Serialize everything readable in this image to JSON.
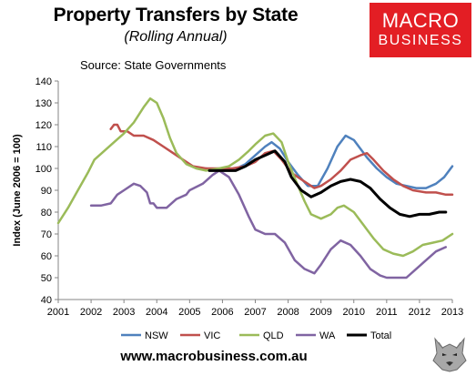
{
  "header": {
    "title": "Property Transfers by State",
    "subtitle": "(Rolling Annual)",
    "source": "Source: State Governments"
  },
  "logo": {
    "line1": "MACRO",
    "line2": "BUSINESS",
    "color": "#e31e24"
  },
  "footer": {
    "website": "www.macrobusiness.com.au"
  },
  "chart_data": {
    "type": "line",
    "title": "Property Transfers by State",
    "subtitle": "(Rolling Annual)",
    "ylabel": "Index (June 2006 = 100)",
    "xlabel": "",
    "xlim": [
      2001,
      2013
    ],
    "ylim": [
      40,
      140
    ],
    "x_ticks": [
      "2001",
      "2002",
      "2003",
      "2004",
      "2005",
      "2006",
      "2007",
      "2008",
      "2009",
      "2010",
      "2011",
      "2012",
      "2013"
    ],
    "y_ticks": [
      "40",
      "50",
      "60",
      "70",
      "80",
      "90",
      "100",
      "110",
      "120",
      "130",
      "140"
    ],
    "grid": false,
    "legend_position": "bottom",
    "series": [
      {
        "name": "NSW",
        "color": "#4f81bd",
        "width": 2.5,
        "points": [
          [
            2005.5,
            100
          ],
          [
            2006.0,
            99
          ],
          [
            2006.3,
            99
          ],
          [
            2006.7,
            102
          ],
          [
            2007.0,
            106
          ],
          [
            2007.3,
            110
          ],
          [
            2007.5,
            112
          ],
          [
            2007.75,
            109
          ],
          [
            2008.0,
            103
          ],
          [
            2008.3,
            97
          ],
          [
            2008.6,
            92
          ],
          [
            2008.9,
            92
          ],
          [
            2009.2,
            100
          ],
          [
            2009.5,
            110
          ],
          [
            2009.75,
            115
          ],
          [
            2010.0,
            113
          ],
          [
            2010.2,
            109
          ],
          [
            2010.4,
            105
          ],
          [
            2010.7,
            100
          ],
          [
            2011.0,
            96
          ],
          [
            2011.3,
            93
          ],
          [
            2011.6,
            92
          ],
          [
            2011.9,
            91
          ],
          [
            2012.2,
            91
          ],
          [
            2012.5,
            93
          ],
          [
            2012.75,
            96
          ],
          [
            2013.0,
            101
          ]
        ]
      },
      {
        "name": "VIC",
        "color": "#c0504d",
        "width": 2.5,
        "points": [
          [
            2002.6,
            118
          ],
          [
            2002.7,
            120
          ],
          [
            2002.8,
            120
          ],
          [
            2002.9,
            117
          ],
          [
            2003.1,
            117
          ],
          [
            2003.3,
            115
          ],
          [
            2003.6,
            115
          ],
          [
            2003.9,
            113
          ],
          [
            2004.2,
            110
          ],
          [
            2004.5,
            107
          ],
          [
            2004.8,
            104
          ],
          [
            2005.1,
            101
          ],
          [
            2005.5,
            100
          ],
          [
            2006.0,
            100
          ],
          [
            2006.3,
            100
          ],
          [
            2006.7,
            101
          ],
          [
            2007.0,
            103
          ],
          [
            2007.3,
            107
          ],
          [
            2007.55,
            108
          ],
          [
            2007.8,
            104
          ],
          [
            2008.1,
            98
          ],
          [
            2008.5,
            94
          ],
          [
            2008.8,
            91
          ],
          [
            2009.0,
            92
          ],
          [
            2009.3,
            95
          ],
          [
            2009.6,
            99
          ],
          [
            2009.9,
            104
          ],
          [
            2010.2,
            106
          ],
          [
            2010.4,
            107
          ],
          [
            2010.6,
            104
          ],
          [
            2010.9,
            99
          ],
          [
            2011.2,
            95
          ],
          [
            2011.5,
            92
          ],
          [
            2011.8,
            90
          ],
          [
            2012.2,
            89
          ],
          [
            2012.5,
            89
          ],
          [
            2012.8,
            88
          ],
          [
            2013.0,
            88
          ]
        ]
      },
      {
        "name": "QLD",
        "color": "#9bbb59",
        "width": 2.5,
        "points": [
          [
            2001.0,
            75
          ],
          [
            2001.3,
            82
          ],
          [
            2001.6,
            90
          ],
          [
            2001.9,
            98
          ],
          [
            2002.1,
            104
          ],
          [
            2002.4,
            108
          ],
          [
            2002.7,
            112
          ],
          [
            2003.0,
            116
          ],
          [
            2003.3,
            121
          ],
          [
            2003.6,
            128
          ],
          [
            2003.8,
            132
          ],
          [
            2004.0,
            130
          ],
          [
            2004.2,
            123
          ],
          [
            2004.4,
            114
          ],
          [
            2004.6,
            107
          ],
          [
            2004.9,
            102
          ],
          [
            2005.2,
            100
          ],
          [
            2005.5,
            99
          ],
          [
            2005.9,
            100
          ],
          [
            2006.2,
            101
          ],
          [
            2006.5,
            104
          ],
          [
            2006.8,
            108
          ],
          [
            2007.0,
            111
          ],
          [
            2007.3,
            115
          ],
          [
            2007.55,
            116
          ],
          [
            2007.8,
            112
          ],
          [
            2008.0,
            103
          ],
          [
            2008.3,
            92
          ],
          [
            2008.5,
            85
          ],
          [
            2008.7,
            79
          ],
          [
            2009.0,
            77
          ],
          [
            2009.3,
            79
          ],
          [
            2009.5,
            82
          ],
          [
            2009.7,
            83
          ],
          [
            2010.0,
            80
          ],
          [
            2010.3,
            74
          ],
          [
            2010.6,
            68
          ],
          [
            2010.9,
            63
          ],
          [
            2011.2,
            61
          ],
          [
            2011.5,
            60
          ],
          [
            2011.8,
            62
          ],
          [
            2012.1,
            65
          ],
          [
            2012.4,
            66
          ],
          [
            2012.7,
            67
          ],
          [
            2013.0,
            70
          ]
        ]
      },
      {
        "name": "WA",
        "color": "#8064a2",
        "width": 2.5,
        "points": [
          [
            2002.0,
            83
          ],
          [
            2002.3,
            83
          ],
          [
            2002.6,
            84
          ],
          [
            2002.8,
            88
          ],
          [
            2003.0,
            90
          ],
          [
            2003.3,
            93
          ],
          [
            2003.5,
            92
          ],
          [
            2003.7,
            89
          ],
          [
            2003.8,
            84
          ],
          [
            2003.9,
            84
          ],
          [
            2004.0,
            82
          ],
          [
            2004.3,
            82
          ],
          [
            2004.6,
            86
          ],
          [
            2004.9,
            88
          ],
          [
            2005.0,
            90
          ],
          [
            2005.4,
            93
          ],
          [
            2005.7,
            97
          ],
          [
            2005.9,
            99
          ],
          [
            2006.2,
            96
          ],
          [
            2006.5,
            88
          ],
          [
            2006.8,
            78
          ],
          [
            2007.0,
            72
          ],
          [
            2007.3,
            70
          ],
          [
            2007.6,
            70
          ],
          [
            2007.9,
            66
          ],
          [
            2008.2,
            58
          ],
          [
            2008.5,
            54
          ],
          [
            2008.8,
            52
          ],
          [
            2009.0,
            56
          ],
          [
            2009.3,
            63
          ],
          [
            2009.6,
            67
          ],
          [
            2009.9,
            65
          ],
          [
            2010.2,
            60
          ],
          [
            2010.5,
            54
          ],
          [
            2010.8,
            51
          ],
          [
            2011.0,
            50
          ],
          [
            2011.3,
            50
          ],
          [
            2011.6,
            50
          ],
          [
            2011.9,
            54
          ],
          [
            2012.2,
            58
          ],
          [
            2012.5,
            62
          ],
          [
            2012.8,
            64
          ]
        ]
      },
      {
        "name": "Total",
        "color": "#000000",
        "width": 3,
        "points": [
          [
            2005.6,
            99
          ],
          [
            2006.0,
            99
          ],
          [
            2006.4,
            99
          ],
          [
            2006.7,
            101
          ],
          [
            2007.0,
            104
          ],
          [
            2007.3,
            106
          ],
          [
            2007.6,
            108
          ],
          [
            2007.9,
            103
          ],
          [
            2008.1,
            96
          ],
          [
            2008.4,
            90
          ],
          [
            2008.7,
            87
          ],
          [
            2009.0,
            89
          ],
          [
            2009.3,
            92
          ],
          [
            2009.6,
            94
          ],
          [
            2009.9,
            95
          ],
          [
            2010.2,
            94
          ],
          [
            2010.5,
            91
          ],
          [
            2010.8,
            86
          ],
          [
            2011.1,
            82
          ],
          [
            2011.4,
            79
          ],
          [
            2011.7,
            78
          ],
          [
            2012.0,
            79
          ],
          [
            2012.3,
            79
          ],
          [
            2012.6,
            80
          ],
          [
            2012.8,
            80
          ]
        ]
      }
    ]
  }
}
